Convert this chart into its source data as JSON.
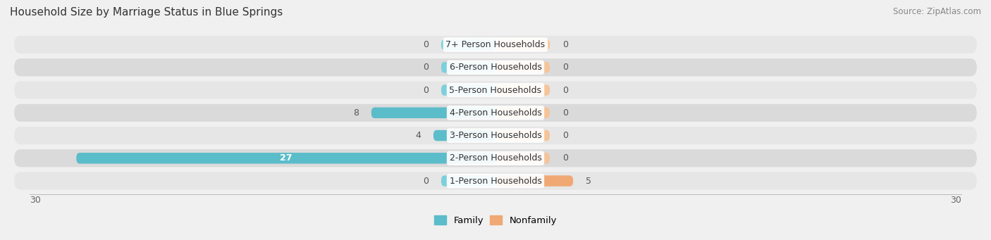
{
  "title": "Household Size by Marriage Status in Blue Springs",
  "source": "Source: ZipAtlas.com",
  "categories": [
    "7+ Person Households",
    "6-Person Households",
    "5-Person Households",
    "4-Person Households",
    "3-Person Households",
    "2-Person Households",
    "1-Person Households"
  ],
  "family_values": [
    0,
    0,
    0,
    8,
    4,
    27,
    0
  ],
  "nonfamily_values": [
    0,
    0,
    0,
    0,
    0,
    0,
    5
  ],
  "family_color": "#5bbcca",
  "nonfamily_color": "#f0a875",
  "family_color_stub": "#7ecfdb",
  "nonfamily_color_stub": "#f5c49a",
  "xlim": 30,
  "stub_size": 3.5,
  "background_color": "#f0f0f0",
  "row_bg_even": "#e6e6e6",
  "row_bg_odd": "#dadada",
  "label_font_size": 9,
  "title_font_size": 11,
  "source_font_size": 8.5,
  "value_font_size": 9
}
